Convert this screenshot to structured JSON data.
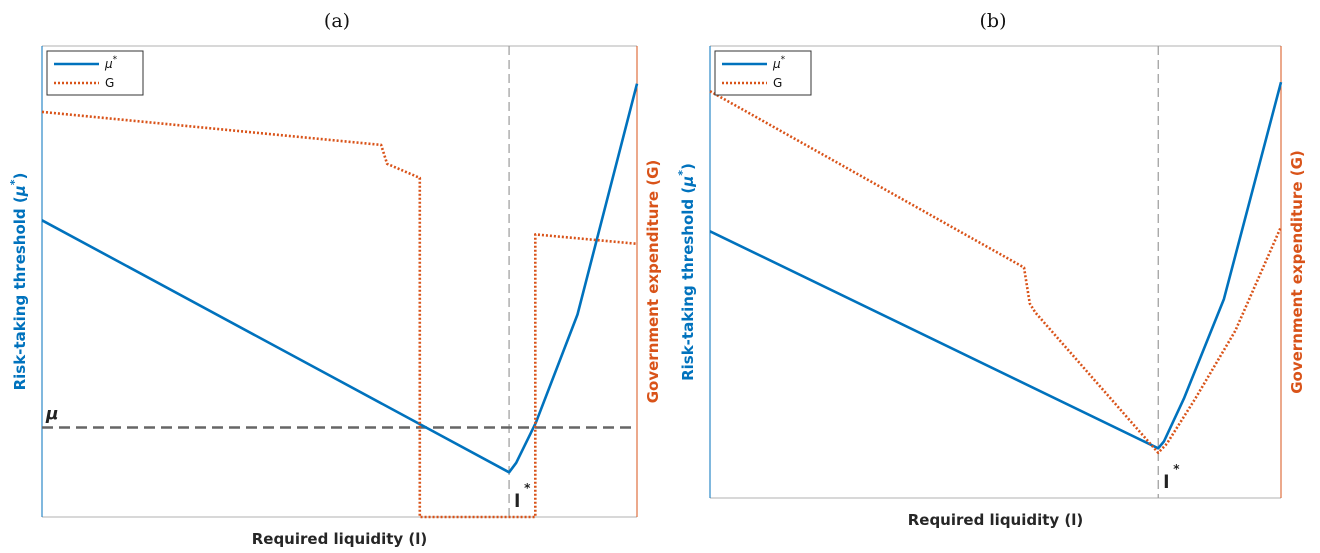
{
  "colors": {
    "mu_series": "#0072BD",
    "G_series": "#D95319",
    "benchmark": "#666666",
    "istar_line": "#9a9a9a"
  },
  "chart_data": [
    {
      "type": "line",
      "panel_label": "(a)",
      "xlabel": "Required liquidity (l)",
      "ylabel_left": "Risk-taking threshold (",
      "ylabel_left_sym": "μ",
      "ylabel_left_sup": "*",
      "ylabel_left_close": ")",
      "ylabel_right": "Government expenditure (G)",
      "xlim": [
        0,
        1
      ],
      "ylim": [
        0,
        1
      ],
      "grid": false,
      "legend_position": "top-left",
      "legend": [
        {
          "symbol": "μ",
          "sup": "*",
          "style": "solid"
        },
        {
          "symbol": "G",
          "sup": "",
          "style": "dotted"
        }
      ],
      "series": [
        {
          "name": "μ*",
          "style": "solid",
          "x": [
            0,
            0.785,
            0.797,
            0.83,
            0.9,
            1.0
          ],
          "y": [
            0.63,
            0.095,
            0.115,
            0.2,
            0.43,
            0.92
          ]
        },
        {
          "name": "G",
          "style": "dotted",
          "x": [
            0,
            0.57,
            0.58,
            0.635,
            0.635,
            0.655,
            0.655,
            0.818,
            0.818,
            0.829,
            0.829,
            1.0
          ],
          "y": [
            0.86,
            0.79,
            0.75,
            0.72,
            0.0,
            0.0,
            0.0,
            0.0,
            0.0,
            0.0,
            0.6,
            0.58
          ]
        }
      ],
      "benchmark": {
        "label": "μ",
        "y": 0.19
      },
      "vline": {
        "label": "l",
        "sup": "*",
        "x": 0.785
      }
    },
    {
      "type": "line",
      "panel_label": "(b)",
      "xlabel": "Required liquidity (l)",
      "ylabel_left": "Risk-taking threshold (",
      "ylabel_left_sym": "μ",
      "ylabel_left_sup": "*",
      "ylabel_left_close": ")",
      "ylabel_right": "Government expenditure (G)",
      "xlim": [
        0,
        1
      ],
      "ylim": [
        0,
        1
      ],
      "grid": false,
      "legend_position": "top-left",
      "legend": [
        {
          "symbol": "μ",
          "sup": "*",
          "style": "solid"
        },
        {
          "symbol": "G",
          "sup": "",
          "style": "dotted"
        }
      ],
      "series": [
        {
          "name": "μ*",
          "style": "solid",
          "x": [
            0,
            0.785,
            0.795,
            0.83,
            0.9,
            1.0
          ],
          "y": [
            0.59,
            0.11,
            0.125,
            0.22,
            0.44,
            0.92
          ]
        },
        {
          "name": "G",
          "style": "dotted",
          "x": [
            0,
            0.55,
            0.56,
            0.57,
            0.785,
            0.8,
            0.85,
            0.92,
            1.0
          ],
          "y": [
            0.9,
            0.51,
            0.43,
            0.41,
            0.1,
            0.12,
            0.22,
            0.37,
            0.6
          ]
        }
      ],
      "vline": {
        "label": "l",
        "sup": "*",
        "x": 0.785
      }
    }
  ]
}
